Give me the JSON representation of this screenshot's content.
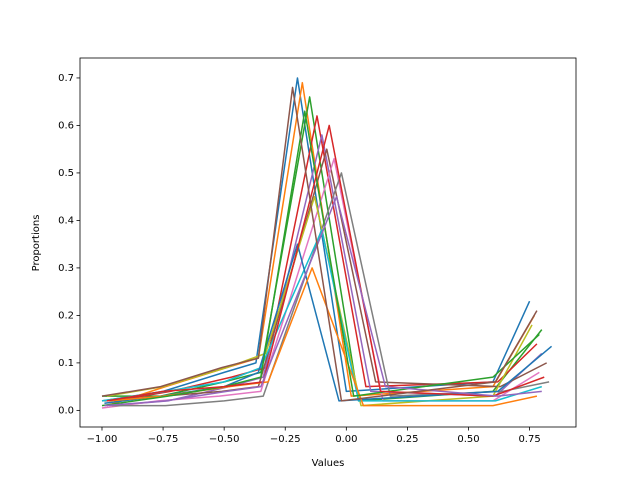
{
  "chart_data": {
    "type": "line",
    "x_label": "Values",
    "y_label": "Proportions",
    "xlim": [
      -1.09,
      0.94
    ],
    "ylim": [
      -0.035,
      0.742
    ],
    "xticks": [
      {
        "value": -1,
        "label": "−1.00"
      },
      {
        "value": -0.75,
        "label": "−0.75"
      },
      {
        "value": -0.5,
        "label": "−0.50"
      },
      {
        "value": -0.25,
        "label": "−0.25"
      },
      {
        "value": 0,
        "label": "0.00"
      },
      {
        "value": 0.25,
        "label": "0.25"
      },
      {
        "value": 0.5,
        "label": "0.50"
      },
      {
        "value": 0.75,
        "label": "0.75"
      }
    ],
    "yticks": [
      {
        "value": 0,
        "label": "0.0"
      },
      0.1,
      0.2,
      0.3,
      0.4,
      0.5,
      0.6,
      0.7
    ],
    "grid": false,
    "series": [
      {
        "color": "#1f77b4",
        "x": [
          -1,
          -0.75,
          -0.5,
          -0.37,
          -0.2,
          0.0,
          0.6,
          0.75
        ],
        "values": [
          0.02,
          0.04,
          0.08,
          0.1,
          0.7,
          0.04,
          0.06,
          0.23
        ]
      },
      {
        "color": "#ff7f0e",
        "x": [
          -0.98,
          -0.74,
          -0.49,
          -0.36,
          -0.18,
          0.02,
          0.6,
          0.77
        ],
        "values": [
          0.01,
          0.05,
          0.09,
          0.11,
          0.69,
          0.03,
          0.05,
          0.2
        ]
      },
      {
        "color": "#2ca02c",
        "x": [
          -1,
          -0.76,
          -0.5,
          -0.35,
          -0.15,
          0.05,
          0.6,
          0.8
        ],
        "values": [
          0.03,
          0.03,
          0.06,
          0.08,
          0.66,
          0.02,
          0.04,
          0.17
        ]
      },
      {
        "color": "#d62728",
        "x": [
          -0.95,
          -0.72,
          -0.47,
          -0.33,
          -0.12,
          0.08,
          0.62,
          0.78
        ],
        "values": [
          0.02,
          0.04,
          0.07,
          0.09,
          0.62,
          0.05,
          0.06,
          0.14
        ]
      },
      {
        "color": "#9467bd",
        "x": [
          -0.97,
          -0.73,
          -0.48,
          -0.34,
          -0.1,
          0.1,
          0.61,
          0.8
        ],
        "values": [
          0.01,
          0.02,
          0.05,
          0.07,
          0.58,
          0.04,
          0.03,
          0.12
        ]
      },
      {
        "color": "#8c564b",
        "x": [
          -0.99,
          -0.75,
          -0.51,
          -0.36,
          -0.08,
          0.12,
          0.63,
          0.82
        ],
        "values": [
          0.02,
          0.03,
          0.04,
          0.05,
          0.55,
          0.06,
          0.05,
          0.1
        ]
      },
      {
        "color": "#e377c2",
        "x": [
          -1,
          -0.77,
          -0.52,
          -0.35,
          -0.05,
          0.15,
          0.6,
          0.79
        ],
        "values": [
          0.005,
          0.02,
          0.03,
          0.04,
          0.53,
          0.02,
          0.02,
          0.08
        ]
      },
      {
        "color": "#7f7f7f",
        "x": [
          -0.96,
          -0.74,
          -0.5,
          -0.34,
          -0.02,
          0.18,
          0.64,
          0.83
        ],
        "values": [
          0.01,
          0.01,
          0.02,
          0.03,
          0.5,
          0.03,
          0.04,
          0.06
        ]
      },
      {
        "color": "#bcbd22",
        "x": [
          -0.98,
          -0.75,
          -0.49,
          -0.33,
          -0.13,
          0.06,
          0.6,
          0.76
        ],
        "values": [
          0.03,
          0.05,
          0.09,
          0.12,
          0.45,
          0.01,
          0.03,
          0.18
        ]
      },
      {
        "color": "#17becf",
        "x": [
          -1,
          -0.74,
          -0.5,
          -0.35,
          -0.1,
          0.05,
          0.61,
          0.8
        ],
        "values": [
          0.02,
          0.04,
          0.06,
          0.09,
          0.38,
          0.02,
          0.02,
          0.05
        ]
      },
      {
        "color": "#1f77b4",
        "x": [
          -0.99,
          -0.76,
          -0.5,
          -0.36,
          -0.2,
          -0.03,
          0.62,
          0.84
        ],
        "values": [
          0.015,
          0.03,
          0.05,
          0.08,
          0.35,
          0.02,
          0.04,
          0.135
        ]
      },
      {
        "color": "#ff7f0e",
        "x": [
          -0.97,
          -0.75,
          -0.48,
          -0.32,
          -0.14,
          0.07,
          0.6,
          0.78
        ],
        "values": [
          0.02,
          0.03,
          0.05,
          0.06,
          0.3,
          0.01,
          0.01,
          0.03
        ]
      },
      {
        "color": "#2ca02c",
        "x": [
          -1,
          -0.73,
          -0.5,
          -0.35,
          -0.17,
          0.03,
          0.6,
          0.79
        ],
        "values": [
          0.01,
          0.03,
          0.05,
          0.07,
          0.63,
          0.03,
          0.07,
          0.16
        ]
      },
      {
        "color": "#d62728",
        "x": [
          -0.98,
          -0.75,
          -0.5,
          -0.34,
          -0.07,
          0.14,
          0.6,
          0.81
        ],
        "values": [
          0.02,
          0.04,
          0.05,
          0.06,
          0.6,
          0.04,
          0.03,
          0.07
        ]
      },
      {
        "color": "#9467bd",
        "x": [
          -0.99,
          -0.74,
          -0.49,
          -0.35,
          -0.04,
          0.16,
          0.62,
          0.8
        ],
        "values": [
          0.01,
          0.02,
          0.04,
          0.05,
          0.45,
          0.05,
          0.03,
          0.04
        ]
      },
      {
        "color": "#8c564b",
        "x": [
          -1,
          -0.76,
          -0.51,
          -0.36,
          -0.22,
          -0.02,
          0.61,
          0.78
        ],
        "values": [
          0.03,
          0.05,
          0.09,
          0.11,
          0.68,
          0.02,
          0.06,
          0.21
        ]
      }
    ]
  }
}
